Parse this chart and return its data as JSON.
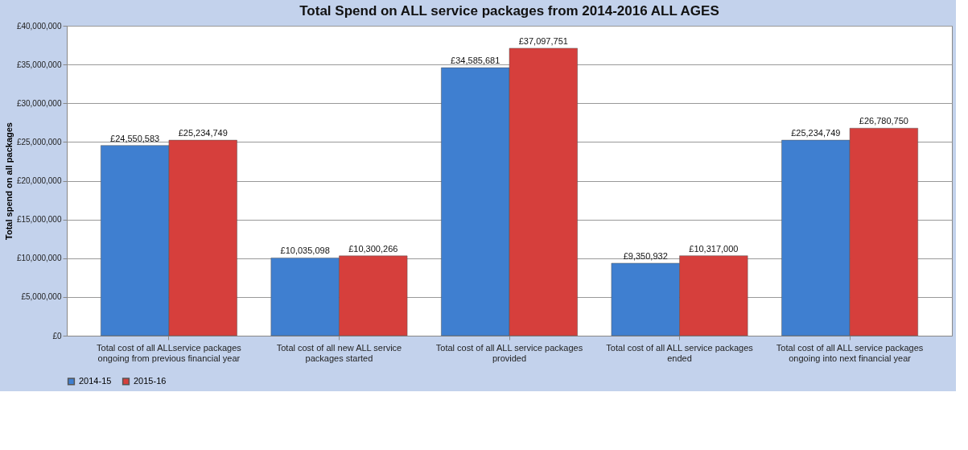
{
  "chart_data": {
    "type": "bar",
    "title": "Total Spend on ALL service packages from 2014-2016 ALL AGES",
    "ylabel": "Total spend on all packages",
    "categories": [
      "Total cost of all ALLservice packages ongoing from previous financial year",
      "Total cost of all new ALL service packages started",
      "Total cost of all ALL service packages provided",
      "Total cost of all ALL service packages ended",
      "Total cost of all ALL service packages ongoing into next financial year"
    ],
    "series": [
      {
        "name": "2014-15",
        "color": "#3f7fd0",
        "values": [
          24550583,
          10035098,
          34585681,
          9350932,
          25234749
        ],
        "value_labels": [
          "£24,550,583",
          "£10,035,098",
          "£34,585,681",
          "£9,350,932",
          "£25,234,749"
        ]
      },
      {
        "name": "2015-16",
        "color": "#d63f3c",
        "values": [
          25234749,
          10300266,
          37097751,
          10317000,
          26780750
        ],
        "value_labels": [
          "£25,234,749",
          "£10,300,266",
          "£37,097,751",
          "£10,317,000",
          "£26,780,750"
        ]
      }
    ],
    "ylim": [
      0,
      40000000
    ],
    "yticks": [
      {
        "value": 0,
        "label": "£0"
      },
      {
        "value": 5000000,
        "label": "£5,000,000"
      },
      {
        "value": 10000000,
        "label": "£10,000,000"
      },
      {
        "value": 15000000,
        "label": "£15,000,000"
      },
      {
        "value": 20000000,
        "label": "£20,000,000"
      },
      {
        "value": 25000000,
        "label": "£25,000,000"
      },
      {
        "value": 30000000,
        "label": "£30,000,000"
      },
      {
        "value": 35000000,
        "label": "£35,000,000"
      },
      {
        "value": 40000000,
        "label": "£40,000,000"
      }
    ],
    "grid": "y",
    "legend": "bottom"
  }
}
